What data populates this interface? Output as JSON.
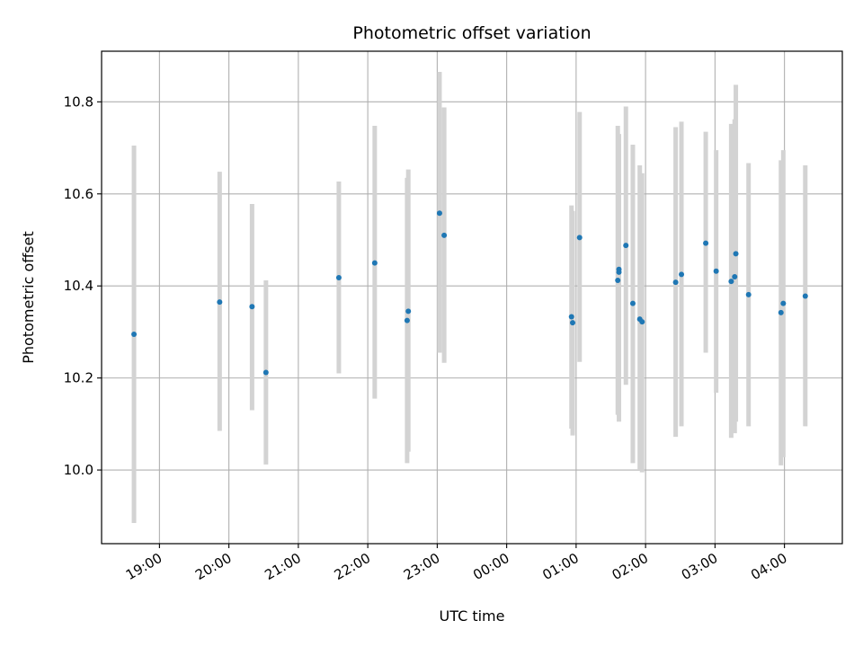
{
  "chart_data": {
    "type": "scatter",
    "title": "Photometric offset variation",
    "xlabel": "UTC time",
    "ylabel": "Photometric offset",
    "grid": true,
    "colors": {
      "point": "#1f77b4",
      "errorbar": "#d3d3d3",
      "grid": "#b0b0b0",
      "axes": "#000000"
    },
    "x_range": [
      "18:10",
      "04:50"
    ],
    "ylim": [
      9.84,
      10.91
    ],
    "x_ticks": [
      "19:00",
      "20:00",
      "21:00",
      "22:00",
      "23:00",
      "00:00",
      "01:00",
      "02:00",
      "03:00",
      "04:00"
    ],
    "y_ticks": [
      "10.0",
      "10.2",
      "10.4",
      "10.6",
      "10.8"
    ],
    "points": [
      {
        "x": "18:38",
        "y": 10.295,
        "ylow": 9.885,
        "yhigh": 10.705
      },
      {
        "x": "19:52",
        "y": 10.365,
        "ylow": 10.085,
        "yhigh": 10.648
      },
      {
        "x": "20:20",
        "y": 10.355,
        "ylow": 10.13,
        "yhigh": 10.578
      },
      {
        "x": "20:32",
        "y": 10.212,
        "ylow": 10.012,
        "yhigh": 10.412
      },
      {
        "x": "21:35",
        "y": 10.418,
        "ylow": 10.21,
        "yhigh": 10.627
      },
      {
        "x": "22:06",
        "y": 10.45,
        "ylow": 10.155,
        "yhigh": 10.748
      },
      {
        "x": "22:34",
        "y": 10.325,
        "ylow": 10.015,
        "yhigh": 10.635
      },
      {
        "x": "22:35",
        "y": 10.345,
        "ylow": 10.04,
        "yhigh": 10.653
      },
      {
        "x": "23:02",
        "y": 10.558,
        "ylow": 10.255,
        "yhigh": 10.865
      },
      {
        "x": "23:06",
        "y": 10.51,
        "ylow": 10.233,
        "yhigh": 10.788
      },
      {
        "x": "00:56",
        "y": 10.333,
        "ylow": 10.09,
        "yhigh": 10.575
      },
      {
        "x": "00:57",
        "y": 10.32,
        "ylow": 10.075,
        "yhigh": 10.563
      },
      {
        "x": "01:03",
        "y": 10.505,
        "ylow": 10.235,
        "yhigh": 10.778
      },
      {
        "x": "01:36",
        "y": 10.412,
        "ylow": 10.12,
        "yhigh": 10.748
      },
      {
        "x": "01:37",
        "y": 10.436,
        "ylow": 10.132,
        "yhigh": 10.73
      },
      {
        "x": "01:37",
        "y": 10.43,
        "ylow": 10.105,
        "yhigh": 10.69
      },
      {
        "x": "01:43",
        "y": 10.488,
        "ylow": 10.185,
        "yhigh": 10.79
      },
      {
        "x": "01:49",
        "y": 10.362,
        "ylow": 10.015,
        "yhigh": 10.707
      },
      {
        "x": "01:55",
        "y": 10.328,
        "ylow": 10.0,
        "yhigh": 10.662
      },
      {
        "x": "01:57",
        "y": 10.322,
        "ylow": 9.995,
        "yhigh": 10.645
      },
      {
        "x": "02:26",
        "y": 10.408,
        "ylow": 10.072,
        "yhigh": 10.745
      },
      {
        "x": "02:31",
        "y": 10.425,
        "ylow": 10.095,
        "yhigh": 10.757
      },
      {
        "x": "02:52",
        "y": 10.493,
        "ylow": 10.255,
        "yhigh": 10.735
      },
      {
        "x": "03:01",
        "y": 10.432,
        "ylow": 10.168,
        "yhigh": 10.695
      },
      {
        "x": "03:14",
        "y": 10.41,
        "ylow": 10.07,
        "yhigh": 10.752
      },
      {
        "x": "03:17",
        "y": 10.42,
        "ylow": 10.08,
        "yhigh": 10.762
      },
      {
        "x": "03:18",
        "y": 10.47,
        "ylow": 10.105,
        "yhigh": 10.837
      },
      {
        "x": "03:29",
        "y": 10.381,
        "ylow": 10.095,
        "yhigh": 10.667
      },
      {
        "x": "03:57",
        "y": 10.342,
        "ylow": 10.01,
        "yhigh": 10.673
      },
      {
        "x": "03:59",
        "y": 10.362,
        "ylow": 10.028,
        "yhigh": 10.695
      },
      {
        "x": "04:18",
        "y": 10.378,
        "ylow": 10.095,
        "yhigh": 10.662
      }
    ]
  }
}
